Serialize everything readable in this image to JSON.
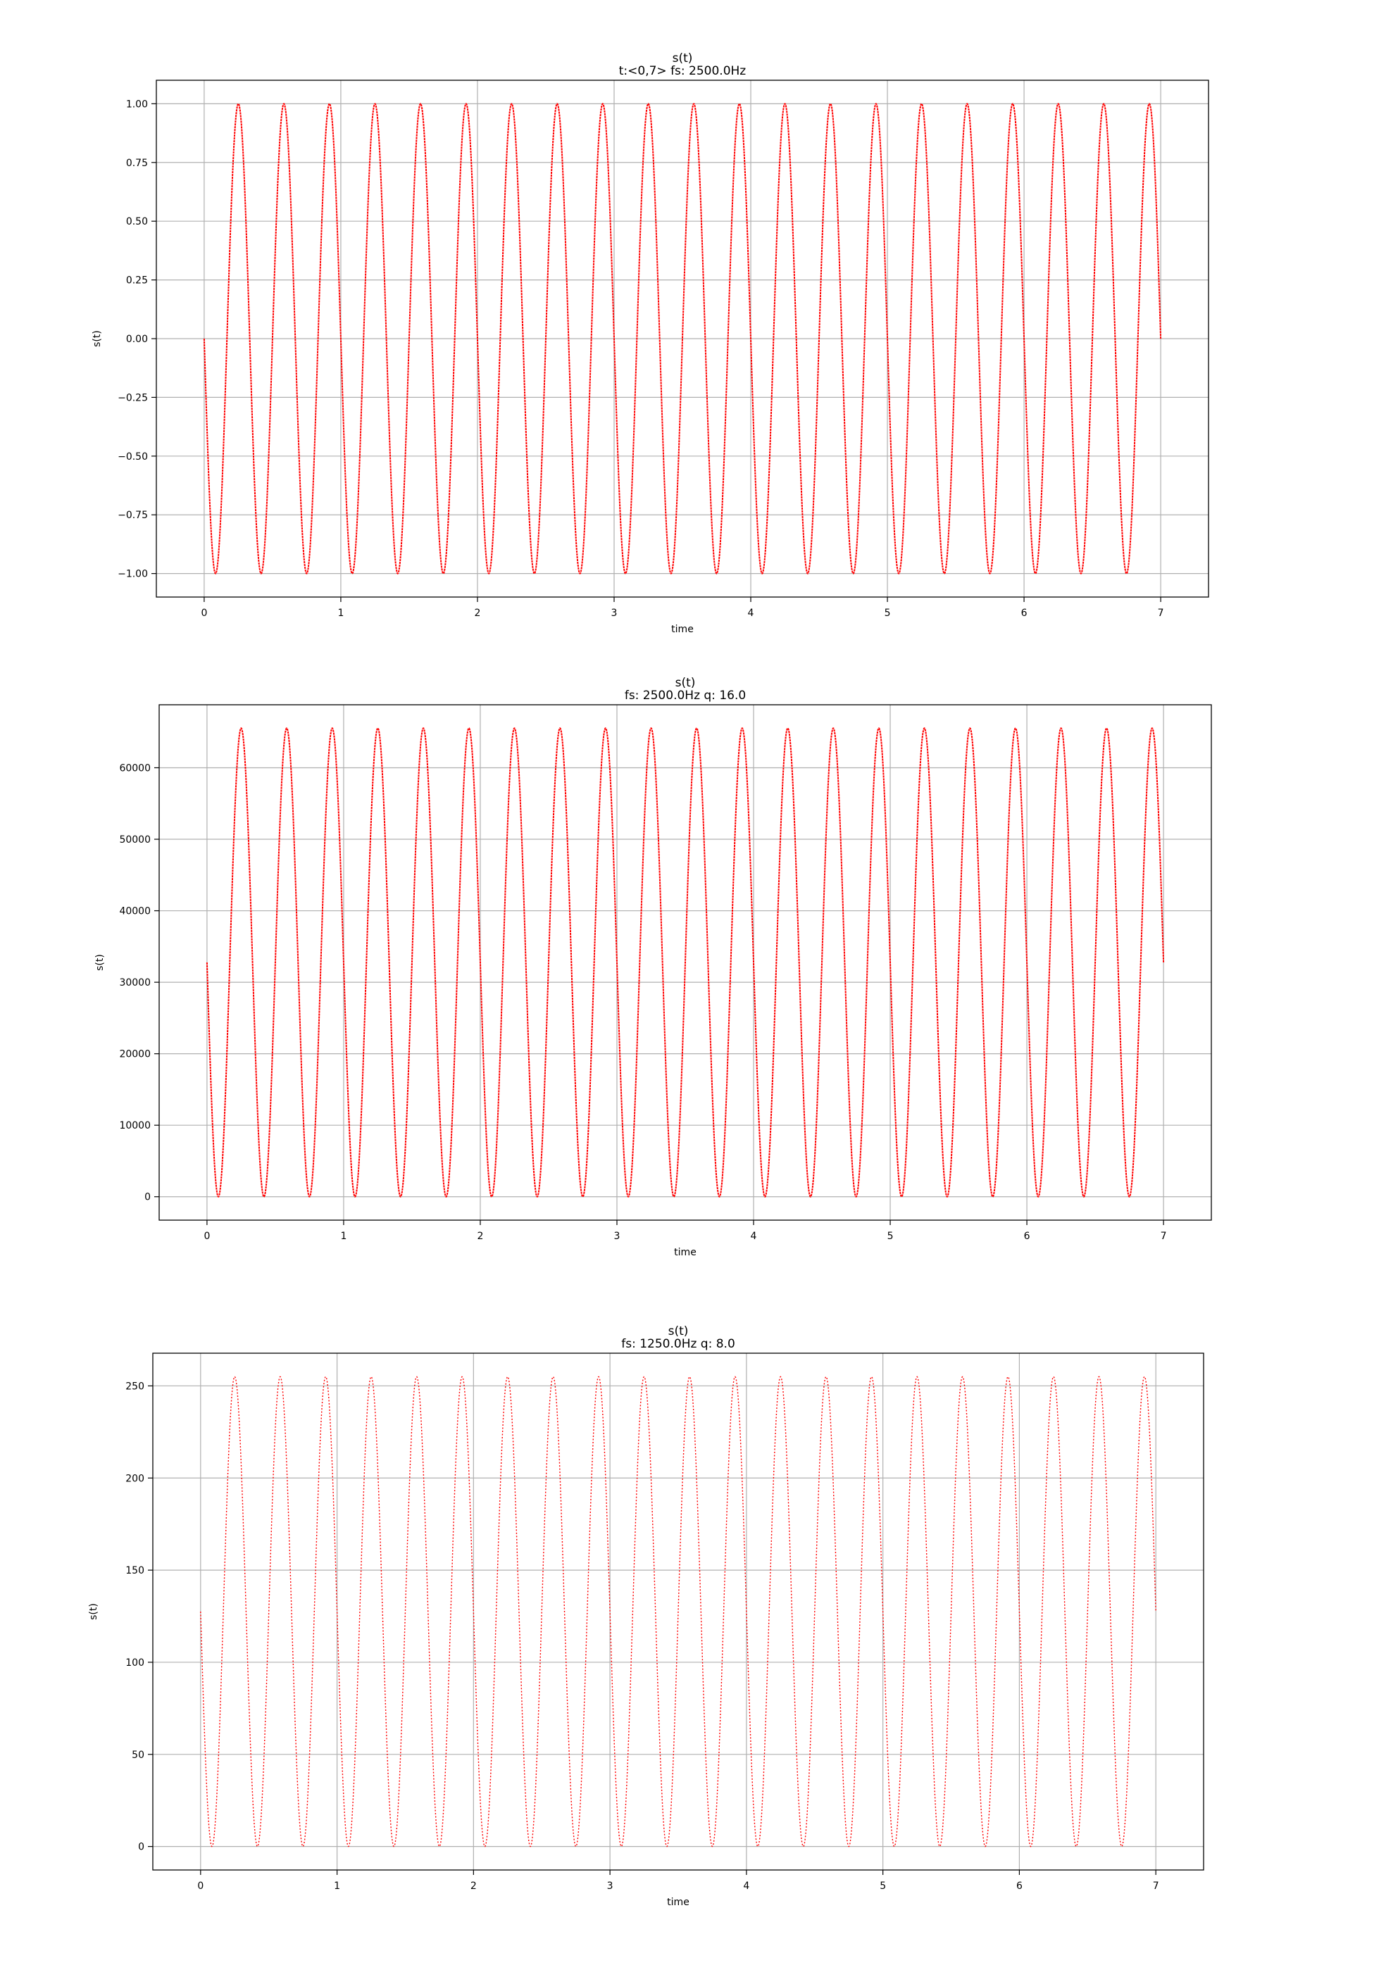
{
  "chart_data": [
    {
      "type": "line",
      "title": "s(t)",
      "subtitle": "t:<0,7> fs: 2500.0Hz",
      "xlabel": "time",
      "ylabel": "s(t)",
      "xlim": [
        -0.35,
        7.35
      ],
      "ylim": [
        -1.1,
        1.1
      ],
      "x_ticks": [
        0,
        1,
        2,
        3,
        4,
        5,
        6,
        7
      ],
      "x_tick_labels": [
        "0",
        "1",
        "2",
        "3",
        "4",
        "5",
        "6",
        "7"
      ],
      "y_ticks": [
        -1.0,
        -0.75,
        -0.5,
        -0.25,
        0.0,
        0.25,
        0.5,
        0.75,
        1.0
      ],
      "y_tick_labels": [
        "−1.00",
        "−0.75",
        "−0.50",
        "−0.25",
        "0.00",
        "0.25",
        "0.50",
        "0.75",
        "1.00"
      ],
      "grid": true,
      "series": [
        {
          "color": "#ff0000",
          "x_range": [
            0,
            7
          ],
          "cycles": 21,
          "amplitude": 1.0,
          "offset": 0.0,
          "phase_sign": -1,
          "samples": 3000
        }
      ]
    },
    {
      "type": "line",
      "title": "s(t)",
      "subtitle": "fs: 2500.0Hz q: 16.0",
      "xlabel": "time",
      "ylabel": "s(t)",
      "xlim": [
        -0.35,
        7.35
      ],
      "ylim": [
        -3276,
        68811
      ],
      "x_ticks": [
        0,
        1,
        2,
        3,
        4,
        5,
        6,
        7
      ],
      "x_tick_labels": [
        "0",
        "1",
        "2",
        "3",
        "4",
        "5",
        "6",
        "7"
      ],
      "y_ticks": [
        0,
        10000,
        20000,
        30000,
        40000,
        50000,
        60000
      ],
      "y_tick_labels": [
        "0",
        "10000",
        "20000",
        "30000",
        "40000",
        "50000",
        "60000"
      ],
      "grid": true,
      "series": [
        {
          "color": "#ff0000",
          "x_range": [
            0,
            7
          ],
          "cycles": 21,
          "amplitude": 32767.5,
          "offset": 32767.5,
          "phase_sign": -1,
          "samples": 3000
        }
      ]
    },
    {
      "type": "line",
      "title": "s(t)",
      "subtitle": "fs: 1250.0Hz q: 8.0",
      "xlabel": "time",
      "ylabel": "s(t)",
      "xlim": [
        -0.35,
        7.35
      ],
      "ylim": [
        -12.75,
        267.75
      ],
      "x_ticks": [
        0,
        1,
        2,
        3,
        4,
        5,
        6,
        7
      ],
      "x_tick_labels": [
        "0",
        "1",
        "2",
        "3",
        "4",
        "5",
        "6",
        "7"
      ],
      "y_ticks": [
        0,
        50,
        100,
        150,
        200,
        250
      ],
      "y_tick_labels": [
        "0",
        "50",
        "100",
        "150",
        "200",
        "250"
      ],
      "grid": true,
      "series": [
        {
          "color": "#ff0000",
          "x_range": [
            0,
            7
          ],
          "cycles": 21,
          "amplitude": 127.5,
          "offset": 127.5,
          "phase_sign": -1,
          "samples": 2200
        }
      ]
    }
  ]
}
